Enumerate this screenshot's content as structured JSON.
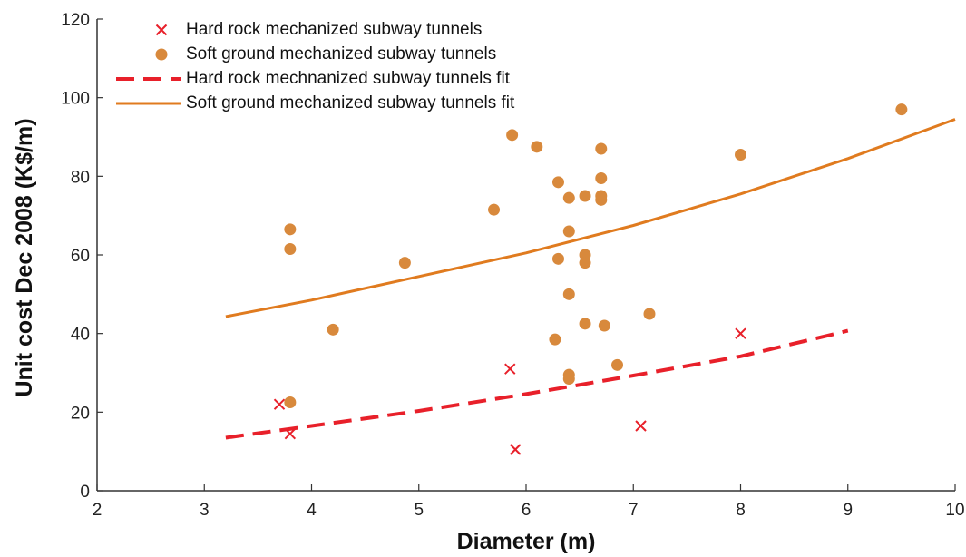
{
  "chart_data": {
    "type": "scatter",
    "title": "",
    "xlabel": "Diameter (m)",
    "ylabel": "Unit cost Dec 2008 (K$/m)",
    "xlim": [
      2,
      10
    ],
    "ylim": [
      0,
      120
    ],
    "xticks": [
      2,
      3,
      4,
      5,
      6,
      7,
      8,
      9,
      10
    ],
    "yticks": [
      0,
      20,
      40,
      60,
      80,
      100,
      120
    ],
    "grid": false,
    "legend_position": "top-left",
    "series": [
      {
        "name": "Hard rock mechanized subway tunnels",
        "kind": "scatter",
        "marker": "x",
        "color": "#e8202a",
        "points": [
          [
            3.7,
            22
          ],
          [
            3.8,
            14.5
          ],
          [
            5.85,
            31
          ],
          [
            5.9,
            10.5
          ],
          [
            7.07,
            16.5
          ],
          [
            8.0,
            40
          ]
        ]
      },
      {
        "name": "Soft ground mechanized subway tunnels",
        "kind": "scatter",
        "marker": "circle",
        "color": "#d8893c",
        "points": [
          [
            3.8,
            66.5
          ],
          [
            3.8,
            61.5
          ],
          [
            3.8,
            22.5
          ],
          [
            4.2,
            41
          ],
          [
            4.87,
            58
          ],
          [
            5.7,
            71.5
          ],
          [
            5.87,
            90.5
          ],
          [
            6.1,
            87.5
          ],
          [
            6.27,
            38.5
          ],
          [
            6.3,
            78.5
          ],
          [
            6.3,
            59
          ],
          [
            6.4,
            74.5
          ],
          [
            6.4,
            66
          ],
          [
            6.4,
            50
          ],
          [
            6.4,
            29.5
          ],
          [
            6.4,
            28.5
          ],
          [
            6.55,
            75
          ],
          [
            6.55,
            60
          ],
          [
            6.55,
            58
          ],
          [
            6.55,
            42.5
          ],
          [
            6.7,
            87
          ],
          [
            6.7,
            79.5
          ],
          [
            6.7,
            75
          ],
          [
            6.7,
            74
          ],
          [
            6.73,
            42
          ],
          [
            6.85,
            32
          ],
          [
            7.15,
            45
          ],
          [
            8.0,
            85.5
          ],
          [
            9.5,
            97
          ]
        ]
      },
      {
        "name": "Hard rock mechnanized subway tunnels fit",
        "kind": "line",
        "style": "dashed",
        "color": "#e8202a",
        "points": [
          [
            3.2,
            13.5
          ],
          [
            4,
            16.5
          ],
          [
            5,
            20.3
          ],
          [
            6,
            24.6
          ],
          [
            7,
            29.3
          ],
          [
            8,
            34.2
          ],
          [
            9,
            40.7
          ]
        ]
      },
      {
        "name": "Soft ground mechanized subway tunnels fit",
        "kind": "line",
        "style": "solid",
        "color": "#e07b1f",
        "points": [
          [
            3.2,
            44.3
          ],
          [
            4,
            48.5
          ],
          [
            5,
            54.5
          ],
          [
            6,
            60.5
          ],
          [
            7,
            67.5
          ],
          [
            8,
            75.5
          ],
          [
            9,
            84.5
          ],
          [
            10,
            94.5
          ]
        ]
      }
    ]
  }
}
